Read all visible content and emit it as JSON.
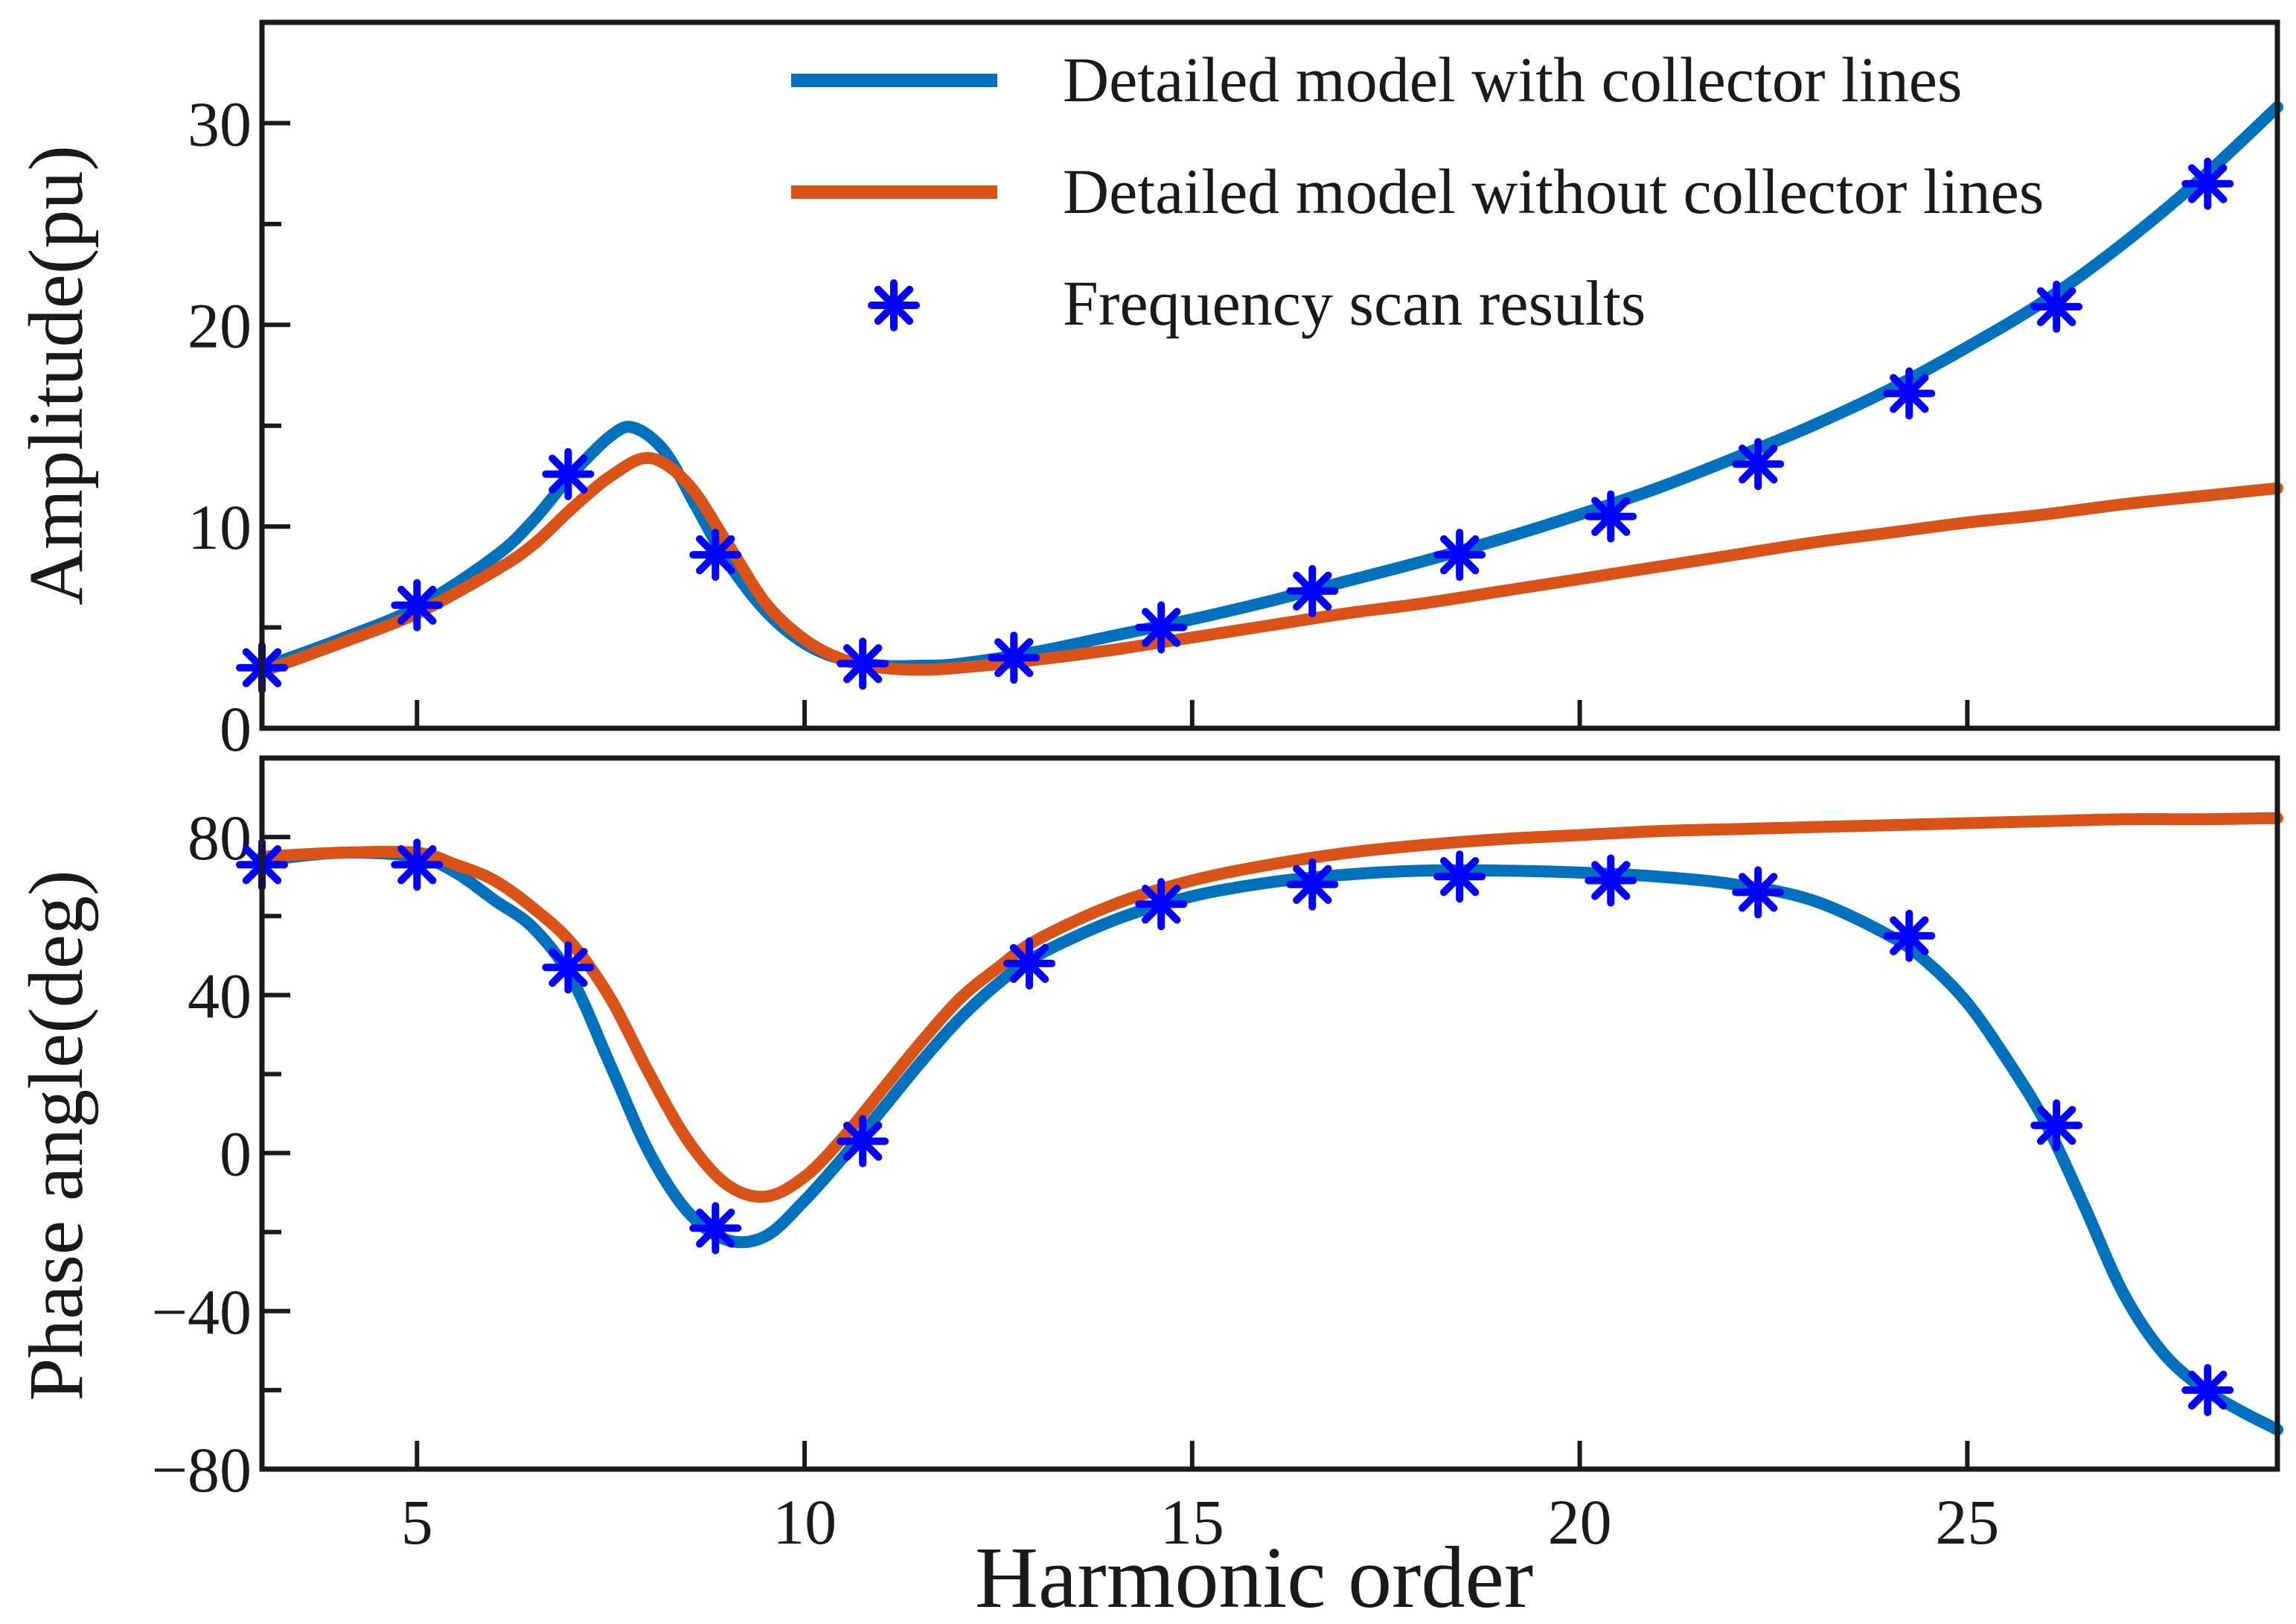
{
  "colors": {
    "with_collector": "#0072BD",
    "without_collector": "#D95319",
    "scan": "#0000FF",
    "axes": "#1a1a1a"
  },
  "xlabel": "Harmonic order",
  "legend": {
    "items": [
      {
        "label": "Detailed model with collector lines",
        "marker": "line",
        "series": "with_collector"
      },
      {
        "label": "Detailed model without collector lines",
        "marker": "line",
        "series": "without_collector"
      },
      {
        "label": "Frequency scan results",
        "marker": "asterisk",
        "series": "scan"
      }
    ],
    "placement": "top-right"
  },
  "chart_data": [
    {
      "type": "line",
      "id": "amplitude",
      "title": "",
      "xlabel": "",
      "ylabel": "Amplitude(pu)",
      "xlim": [
        3,
        29
      ],
      "ylim": [
        0,
        35
      ],
      "xticks": [
        5,
        10,
        15,
        20,
        25
      ],
      "yticks": [
        0,
        10,
        20,
        30
      ],
      "xtick_labels_visible": false,
      "series": [
        {
          "name": "Detailed model with collector lines",
          "key": "with_collector",
          "x": [
            3,
            4,
            5,
            6,
            6.5,
            7,
            7.5,
            7.8,
            8.2,
            8.6,
            9,
            9.5,
            10,
            10.5,
            11,
            11.5,
            12,
            13,
            14,
            15,
            16,
            17,
            18,
            19,
            20,
            21,
            22,
            23,
            24,
            25,
            26,
            27,
            28,
            29
          ],
          "y": [
            3,
            4.4,
            6,
            8.5,
            10.3,
            12.6,
            14.5,
            14.9,
            13.7,
            11,
            8.3,
            5.8,
            4.2,
            3.4,
            3.1,
            3.1,
            3.2,
            3.8,
            4.6,
            5.4,
            6.3,
            7.3,
            8.3,
            9.4,
            10.6,
            11.9,
            13.4,
            15,
            16.8,
            18.9,
            21.2,
            24,
            27.2,
            30.8
          ]
        },
        {
          "name": "Detailed model without collector lines",
          "key": "without_collector",
          "x": [
            3,
            4,
            5,
            6,
            6.5,
            7,
            7.5,
            8,
            8.5,
            9,
            9.5,
            10,
            10.5,
            11,
            11.5,
            12,
            13,
            14,
            15,
            16,
            17,
            18,
            19,
            20,
            21,
            22,
            23,
            24,
            25,
            26,
            27,
            28,
            29
          ],
          "y": [
            2.8,
            4.2,
            5.7,
            7.8,
            9.1,
            10.9,
            12.5,
            13.4,
            12.1,
            9.2,
            6.2,
            4.4,
            3.4,
            3,
            2.9,
            3,
            3.4,
            3.9,
            4.5,
            5.1,
            5.7,
            6.2,
            6.8,
            7.4,
            8,
            8.6,
            9.2,
            9.7,
            10.2,
            10.6,
            11.1,
            11.5,
            11.9
          ]
        },
        {
          "name": "Frequency scan results",
          "key": "scan",
          "marker": "asterisk",
          "x": [
            3,
            5,
            6.95,
            8.85,
            10.75,
            12.7,
            14.6,
            16.55,
            18.45,
            20.4,
            22.3,
            24.25,
            26.15,
            28.1
          ],
          "y": [
            3,
            6.1,
            12.6,
            8.6,
            3.2,
            3.5,
            5,
            6.8,
            8.6,
            10.5,
            13.1,
            16.6,
            20.9,
            27
          ]
        }
      ]
    },
    {
      "type": "line",
      "id": "phase",
      "title": "",
      "xlabel": "Harmonic order",
      "ylabel": "Phase angle(deg)",
      "xlim": [
        3,
        29
      ],
      "ylim": [
        -80,
        100
      ],
      "xticks": [
        5,
        10,
        15,
        20,
        25
      ],
      "yticks": [
        -80,
        -40,
        0,
        40,
        80
      ],
      "series": [
        {
          "name": "Detailed model with collector lines",
          "key": "with_collector",
          "x": [
            3,
            4,
            5,
            5.5,
            6,
            6.5,
            7,
            7.5,
            8,
            8.5,
            9,
            9.5,
            10,
            10.5,
            11,
            11.5,
            12,
            12.5,
            13,
            14,
            15,
            16,
            17,
            18,
            19,
            20,
            21,
            22,
            23,
            24,
            24.5,
            25,
            25.5,
            26,
            26.5,
            27,
            27.5,
            28,
            28.5,
            29
          ],
          "y": [
            74,
            76,
            75,
            71,
            64,
            57,
            44,
            22,
            0,
            -15,
            -22,
            -21,
            -12,
            -1,
            11,
            23,
            34,
            43,
            50,
            59,
            65,
            68.5,
            70.5,
            71.5,
            71.5,
            71,
            70,
            68,
            64,
            55,
            48,
            38,
            24,
            8,
            -13,
            -35,
            -50,
            -59,
            -65,
            -70
          ]
        },
        {
          "name": "Detailed model without collector lines",
          "key": "without_collector",
          "x": [
            3,
            4,
            5,
            5.5,
            6,
            6.5,
            7,
            7.5,
            8,
            8.5,
            9,
            9.5,
            10,
            10.5,
            11,
            11.5,
            12,
            12.5,
            13,
            14,
            15,
            16,
            17,
            18,
            19,
            20,
            21,
            22,
            23,
            24,
            25,
            26,
            27,
            28,
            29
          ],
          "y": [
            75,
            76,
            76,
            73,
            69,
            62,
            53,
            39,
            20,
            3,
            -8,
            -11,
            -6,
            4,
            16,
            28,
            39,
            47,
            54,
            63,
            69,
            73,
            76,
            78,
            79.5,
            80.5,
            81.5,
            82,
            82.5,
            83,
            83.5,
            84,
            84.5,
            84.5,
            84.8
          ]
        },
        {
          "name": "Frequency scan results",
          "key": "scan",
          "marker": "asterisk",
          "x": [
            3,
            5,
            6.95,
            8.85,
            10.75,
            12.9,
            14.6,
            16.55,
            18.45,
            20.4,
            22.3,
            24.25,
            26.15,
            28.1
          ],
          "y": [
            73,
            73,
            47,
            -19,
            3,
            48,
            63,
            68,
            70,
            69,
            66,
            55,
            7,
            -60
          ]
        }
      ]
    }
  ]
}
